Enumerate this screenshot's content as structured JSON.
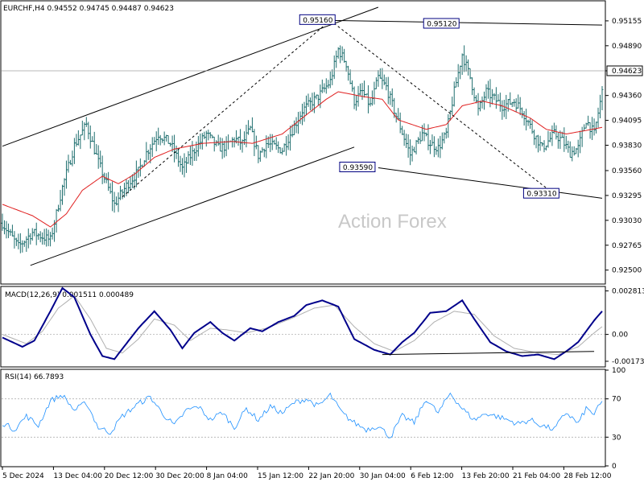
{
  "colors": {
    "background": "#ffffff",
    "bars": "#1f6f6f",
    "ma_line": "#e02020",
    "macd_line": "#00008b",
    "signal_line": "#b0b0b0",
    "rsi_line": "#1e90ff",
    "trendlines": "#000000",
    "annotation_box": "#000080",
    "current_price_box": "#ffffff"
  },
  "chart_data": [
    {
      "type": "ohlc",
      "title": "EURCHF,H4 0.94552 0.94745 0.94487 0.94623",
      "symbol": "EURCHF",
      "timeframe": "H4",
      "ohlc_header": {
        "open": 0.94552,
        "high": 0.94745,
        "low": 0.94487,
        "close": 0.94623
      },
      "current_price": 0.94623,
      "ylim": [
        0.9236,
        0.9536
      ],
      "yticks": [
        "0.95155",
        "0.94890",
        "0.94623",
        "0.94360",
        "0.94095",
        "0.93830",
        "0.93560",
        "0.93295",
        "0.93030",
        "0.92765",
        "0.92500"
      ],
      "xticks": [
        "5 Dec 2024",
        "13 Dec 04:00",
        "20 Dec 12:00",
        "30 Dec 20:00",
        "8 Jan 04:00",
        "15 Jan 12:00",
        "22 Jan 20:00",
        "30 Jan 04:00",
        "6 Feb 12:00",
        "13 Feb 20:00",
        "21 Feb 04:00",
        "28 Feb 12:00"
      ],
      "watermark": "Action Forex",
      "price_path": [
        [
          0,
          0.93
        ],
        [
          8,
          0.9275
        ],
        [
          15,
          0.929
        ],
        [
          24,
          0.9282
        ],
        [
          30,
          0.9338
        ],
        [
          36,
          0.9383
        ],
        [
          42,
          0.9405
        ],
        [
          48,
          0.9365
        ],
        [
          56,
          0.932
        ],
        [
          62,
          0.934
        ],
        [
          68,
          0.9355
        ],
        [
          72,
          0.9375
        ],
        [
          78,
          0.9395
        ],
        [
          84,
          0.9385
        ],
        [
          90,
          0.9358
        ],
        [
          96,
          0.9378
        ],
        [
          102,
          0.9395
        ],
        [
          108,
          0.938
        ],
        [
          112,
          0.9382
        ],
        [
          116,
          0.939
        ],
        [
          120,
          0.9385
        ],
        [
          124,
          0.94
        ],
        [
          128,
          0.9372
        ],
        [
          132,
          0.9385
        ],
        [
          140,
          0.9378
        ],
        [
          150,
          0.942
        ],
        [
          158,
          0.9435
        ],
        [
          164,
          0.9451
        ],
        [
          168,
          0.9485
        ],
        [
          172,
          0.947
        ],
        [
          176,
          0.943
        ],
        [
          180,
          0.944
        ],
        [
          184,
          0.9425
        ],
        [
          188,
          0.9455
        ],
        [
          192,
          0.9445
        ],
        [
          196,
          0.942
        ],
        [
          204,
          0.9373
        ],
        [
          210,
          0.9395
        ],
        [
          214,
          0.9385
        ],
        [
          218,
          0.938
        ],
        [
          222,
          0.9395
        ],
        [
          226,
          0.944
        ],
        [
          230,
          0.948
        ],
        [
          234,
          0.9455
        ],
        [
          238,
          0.942
        ],
        [
          242,
          0.944
        ],
        [
          250,
          0.9425
        ],
        [
          256,
          0.943
        ],
        [
          260,
          0.942
        ],
        [
          266,
          0.9395
        ],
        [
          270,
          0.938
        ],
        [
          276,
          0.9395
        ],
        [
          280,
          0.9388
        ],
        [
          284,
          0.9375
        ],
        [
          288,
          0.938
        ],
        [
          292,
          0.941
        ],
        [
          296,
          0.9395
        ],
        [
          300,
          0.944
        ]
      ],
      "ma_path": [
        [
          0,
          0.932
        ],
        [
          15,
          0.9308
        ],
        [
          24,
          0.9296
        ],
        [
          32,
          0.931
        ],
        [
          40,
          0.9335
        ],
        [
          50,
          0.935
        ],
        [
          58,
          0.9342
        ],
        [
          66,
          0.9352
        ],
        [
          76,
          0.937
        ],
        [
          86,
          0.9379
        ],
        [
          100,
          0.9385
        ],
        [
          115,
          0.9387
        ],
        [
          125,
          0.9385
        ],
        [
          140,
          0.9395
        ],
        [
          150,
          0.9412
        ],
        [
          162,
          0.9432
        ],
        [
          168,
          0.944
        ],
        [
          180,
          0.9435
        ],
        [
          190,
          0.9432
        ],
        [
          198,
          0.941
        ],
        [
          212,
          0.94
        ],
        [
          222,
          0.9405
        ],
        [
          230,
          0.9425
        ],
        [
          240,
          0.943
        ],
        [
          250,
          0.9425
        ],
        [
          264,
          0.9412
        ],
        [
          272,
          0.94
        ],
        [
          282,
          0.9395
        ],
        [
          290,
          0.9398
        ],
        [
          300,
          0.9402
        ]
      ],
      "annotations": [
        {
          "label": "0.95160",
          "value": 0.9516,
          "x": 164
        },
        {
          "label": "0.95120",
          "value": 0.9512,
          "x": 226
        },
        {
          "label": "0.93590",
          "value": 0.9359,
          "x": 184
        },
        {
          "label": "0.93310",
          "value": 0.9331,
          "x": 276
        }
      ],
      "trendlines": [
        {
          "name": "channel-upper",
          "from": [
            0,
            0.9382
          ],
          "to": [
            188,
            0.953
          ]
        },
        {
          "name": "channel-lower",
          "from": [
            14,
            0.9255
          ],
          "to": [
            176,
            0.9381
          ]
        },
        {
          "name": "resistance",
          "from": [
            164,
            0.9516
          ],
          "to": [
            300,
            0.9511
          ]
        },
        {
          "name": "support",
          "from": [
            188,
            0.9359
          ],
          "to": [
            300,
            0.93265
          ]
        },
        {
          "name": "dashed-rise",
          "from": [
            60,
            0.9328
          ],
          "to": [
            164,
            0.9516
          ],
          "dashed": true
        },
        {
          "name": "dashed-fall",
          "from": [
            164,
            0.9516
          ],
          "to": [
            276,
            0.9331
          ],
          "dashed": true
        }
      ]
    },
    {
      "type": "line",
      "title": "MACD(12,26,9) 0.001511 0.000489",
      "ylim": [
        -0.00205,
        0.00305
      ],
      "yticks": [
        "0.002813",
        "0.00",
        "-0.001737"
      ],
      "macd_path": [
        [
          0,
          -0.0002
        ],
        [
          10,
          -0.0008
        ],
        [
          16,
          -0.0004
        ],
        [
          24,
          0.0015
        ],
        [
          30,
          0.003
        ],
        [
          36,
          0.0024
        ],
        [
          44,
          0.0
        ],
        [
          50,
          -0.0014
        ],
        [
          56,
          -0.0016
        ],
        [
          62,
          -0.0006
        ],
        [
          68,
          0.0004
        ],
        [
          76,
          0.0015
        ],
        [
          84,
          0.0003
        ],
        [
          90,
          -0.0009
        ],
        [
          96,
          0.0001
        ],
        [
          104,
          0.0008
        ],
        [
          110,
          0.0001
        ],
        [
          116,
          -0.0004
        ],
        [
          124,
          0.0004
        ],
        [
          130,
          0.0002
        ],
        [
          138,
          0.0008
        ],
        [
          146,
          0.0012
        ],
        [
          152,
          0.0019
        ],
        [
          160,
          0.0022
        ],
        [
          168,
          0.0018
        ],
        [
          176,
          -0.0003
        ],
        [
          186,
          -0.001
        ],
        [
          194,
          -0.0013
        ],
        [
          200,
          -0.0005
        ],
        [
          206,
          0.0001
        ],
        [
          214,
          0.0014
        ],
        [
          222,
          0.0015
        ],
        [
          230,
          0.0022
        ],
        [
          236,
          0.001
        ],
        [
          244,
          -0.0005
        ],
        [
          252,
          -0.0011
        ],
        [
          260,
          -0.0014
        ],
        [
          268,
          -0.0013
        ],
        [
          276,
          -0.0016
        ],
        [
          282,
          -0.0011
        ],
        [
          288,
          -0.0005
        ],
        [
          292,
          0.0002
        ],
        [
          296,
          0.0009
        ],
        [
          300,
          0.0015
        ]
      ],
      "signal_path": [
        [
          0,
          0.0
        ],
        [
          12,
          -0.0006
        ],
        [
          20,
          0.0002
        ],
        [
          28,
          0.0017
        ],
        [
          36,
          0.0025
        ],
        [
          44,
          0.001
        ],
        [
          52,
          -0.0009
        ],
        [
          60,
          -0.0012
        ],
        [
          68,
          -0.0003
        ],
        [
          76,
          0.001
        ],
        [
          86,
          0.0006
        ],
        [
          94,
          -0.0004
        ],
        [
          104,
          0.0004
        ],
        [
          112,
          0.0003
        ],
        [
          122,
          0.0001
        ],
        [
          132,
          0.0004
        ],
        [
          144,
          0.001
        ],
        [
          156,
          0.0017
        ],
        [
          166,
          0.0019
        ],
        [
          176,
          0.0005
        ],
        [
          186,
          -0.0006
        ],
        [
          196,
          -0.0011
        ],
        [
          206,
          -0.0004
        ],
        [
          216,
          0.0008
        ],
        [
          226,
          0.0015
        ],
        [
          236,
          0.0013
        ],
        [
          246,
          -0.0001
        ],
        [
          256,
          -0.0009
        ],
        [
          268,
          -0.0012
        ],
        [
          278,
          -0.0013
        ],
        [
          288,
          -0.0008
        ],
        [
          296,
          0.0001
        ],
        [
          300,
          0.0005
        ]
      ],
      "divergence_line": {
        "from": [
          190,
          -0.0013
        ],
        "to": [
          296,
          -0.0011
        ]
      }
    },
    {
      "type": "line",
      "title": "RSI(14) 66.7893",
      "ylim": [
        0,
        100
      ],
      "yticks": [
        "100",
        "70",
        "30",
        "0"
      ],
      "levels": [
        70,
        30
      ],
      "rsi_path": [
        [
          0,
          45
        ],
        [
          6,
          38
        ],
        [
          12,
          52
        ],
        [
          18,
          42
        ],
        [
          24,
          68
        ],
        [
          30,
          74
        ],
        [
          36,
          58
        ],
        [
          42,
          66
        ],
        [
          48,
          40
        ],
        [
          54,
          35
        ],
        [
          60,
          52
        ],
        [
          68,
          65
        ],
        [
          74,
          72
        ],
        [
          80,
          55
        ],
        [
          86,
          42
        ],
        [
          92,
          58
        ],
        [
          98,
          62
        ],
        [
          104,
          48
        ],
        [
          110,
          56
        ],
        [
          116,
          40
        ],
        [
          122,
          60
        ],
        [
          128,
          48
        ],
        [
          134,
          62
        ],
        [
          140,
          55
        ],
        [
          146,
          66
        ],
        [
          152,
          70
        ],
        [
          158,
          62
        ],
        [
          164,
          74
        ],
        [
          170,
          55
        ],
        [
          176,
          45
        ],
        [
          182,
          38
        ],
        [
          188,
          42
        ],
        [
          194,
          30
        ],
        [
          200,
          52
        ],
        [
          206,
          45
        ],
        [
          212,
          70
        ],
        [
          218,
          55
        ],
        [
          224,
          76
        ],
        [
          230,
          60
        ],
        [
          236,
          48
        ],
        [
          242,
          55
        ],
        [
          250,
          50
        ],
        [
          258,
          44
        ],
        [
          264,
          48
        ],
        [
          270,
          42
        ],
        [
          276,
          38
        ],
        [
          282,
          56
        ],
        [
          288,
          44
        ],
        [
          292,
          60
        ],
        [
          296,
          54
        ],
        [
          300,
          67
        ]
      ]
    }
  ]
}
